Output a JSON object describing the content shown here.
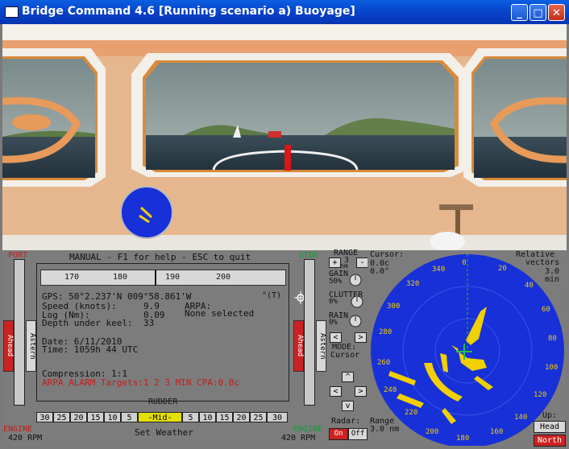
{
  "window": {
    "title": "Bridge Command 4.6 [Running scenario a) Buoyage]",
    "controls": {
      "minimize": "_",
      "maximize": "□",
      "close": "✕"
    }
  },
  "panel": {
    "help_line": "MANUAL - F1 for help - ESC to quit",
    "port_label": "PORT",
    "stbd_label": "STBD",
    "heading_ticks": [
      "170",
      "180",
      "190",
      "200"
    ],
    "true_heading_suffix": "°(T)",
    "gps": "GPS: 50°2.237'N 009°58.861'W",
    "speed_label": "Speed (knots):",
    "speed_value": "9.9",
    "log_label": "Log (Nm):",
    "log_value": "0.09",
    "depth_label": "Depth under keel:",
    "depth_value": "33",
    "arpa_label": "ARPA:",
    "arpa_value": "None selected",
    "date": "Date: 6/11/2010",
    "time": "Time: 1059h 44 UTC",
    "compression": "Compression: 1:1",
    "arpa_alarm": "ARPA ALARM Targets:1 2 3 MIN CPA:0.8c",
    "rudder_label": "RUDDER",
    "rudder_scale": [
      "30",
      "25",
      "20",
      "15",
      "10",
      "5",
      "-Mid-",
      "5",
      "10",
      "15",
      "20",
      "25",
      "30"
    ],
    "set_weather": "Set Weather",
    "port_engine": {
      "label": "ENGINE",
      "rpm": "420 RPM",
      "ahead": "Ahead",
      "astern": "Astern"
    },
    "stbd_engine": {
      "label": "ENGINE",
      "rpm": "420 RPM",
      "ahead": "Ahead",
      "astern": "Astern"
    }
  },
  "radar": {
    "range_label": "RANGE",
    "range_value": "3",
    "range_unit": "nm",
    "plus": "+",
    "minus": "-",
    "gain_label": "GAIN",
    "gain_value": "50%",
    "clutter_label": "CLUTTER",
    "clutter_value": "0%",
    "rain_label": "RAIN",
    "rain_value": "0%",
    "arrow_left": "<",
    "arrow_right": ">",
    "mode_label": "MODE:",
    "mode_value": "Cursor",
    "arrow_up": "^",
    "arrow_down": "v",
    "cursor_label": "Cursor:",
    "cursor_range": "0.0c",
    "cursor_bearing": "0.0°",
    "vectors_line1": "Relative",
    "vectors_line2": "vectors",
    "vectors_value": "3.0",
    "vectors_unit": "min",
    "radar_label": "Radar:",
    "on_label": "On",
    "off_label": "Off",
    "range_readout": "Range",
    "range_readout_value": "3.0 nm",
    "orientation_label": "Up:",
    "orientation_value": "Head",
    "north_button": "North",
    "bearings": [
      "0",
      "20",
      "40",
      "60",
      "80",
      "100",
      "120",
      "140",
      "160",
      "180",
      "200",
      "220",
      "240",
      "260",
      "280",
      "300",
      "320",
      "340"
    ]
  },
  "colors": {
    "titlebar": "#0840c8",
    "radar_bg": "#1830d8",
    "radar_echo": "#f0d000",
    "alarm_red": "#c81b1b",
    "panel_gray": "#7c7c7c"
  }
}
